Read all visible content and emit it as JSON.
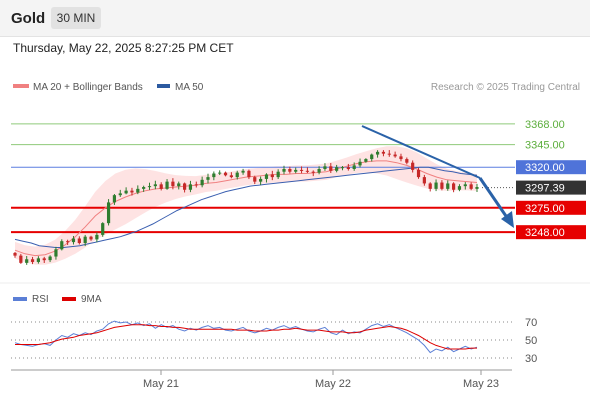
{
  "header": {
    "symbol": "Gold",
    "timeframe": "30 MIN",
    "datetime": "Thursday, May 22, 2025 8:27:25 PM CET"
  },
  "legend": {
    "items": [
      {
        "label": "MA 20 + Bollinger Bands",
        "color": "#f08080"
      },
      {
        "label": "MA 50",
        "color": "#2c5aa0"
      }
    ],
    "credit": "Research © 2025 Trading Central"
  },
  "rsi_legend": {
    "items": [
      {
        "label": "RSI",
        "color": "#5b7fd6"
      },
      {
        "label": "9MA",
        "color": "#dd0000"
      }
    ]
  },
  "colors": {
    "bullish_candle": "#2f7d2f",
    "bearish_candle": "#c62828",
    "resistance": "#8fca7a",
    "pivot": "#5b7fe0",
    "support": "#e60000",
    "last_price": "#333333",
    "arrow": "#2a62a8",
    "band_fill": "#fdd9d9"
  },
  "chart_data": [
    {
      "type": "candlestick",
      "title": "",
      "x_ticks": [
        "May 21",
        "May 22",
        "May 23"
      ],
      "ylim": [
        3195,
        3400
      ],
      "price_levels": [
        {
          "value": 3368.0,
          "label": "3368.00",
          "kind": "resistance"
        },
        {
          "value": 3345.0,
          "label": "3345.00",
          "kind": "resistance"
        },
        {
          "value": 3320.0,
          "label": "3320.00",
          "kind": "pivot"
        },
        {
          "value": 3297.39,
          "label": "3297.39",
          "kind": "last"
        },
        {
          "value": 3275.0,
          "label": "3275.00",
          "kind": "support"
        },
        {
          "value": 3248.0,
          "label": "3248.00",
          "kind": "support"
        }
      ],
      "ohlc_close_path": [
        3222,
        3214,
        3218,
        3215,
        3219,
        3217,
        3221,
        3229,
        3238,
        3237,
        3241,
        3236,
        3243,
        3240,
        3245,
        3258,
        3281,
        3289,
        3291,
        3294,
        3292,
        3296,
        3298,
        3299,
        3301,
        3296,
        3304,
        3299,
        3302,
        3295,
        3301,
        3300,
        3306,
        3309,
        3313,
        3314,
        3311,
        3309,
        3314,
        3316,
        3309,
        3304,
        3307,
        3312,
        3309,
        3315,
        3318,
        3315,
        3317,
        3316,
        3315,
        3314,
        3318,
        3321,
        3316,
        3320,
        3320,
        3318,
        3322,
        3326,
        3329,
        3334,
        3337,
        3335,
        3334,
        3332,
        3329,
        3325,
        3317,
        3309,
        3302,
        3296,
        3303,
        3296,
        3302,
        3295,
        3299,
        3301,
        3296,
        3298
      ],
      "ma50_path": [
        3240,
        3238,
        3236,
        3233,
        3232,
        3231,
        3231,
        3232,
        3233,
        3235,
        3237,
        3239,
        3241,
        3243,
        3246,
        3249,
        3253,
        3257,
        3262,
        3267,
        3272,
        3276,
        3280,
        3284,
        3287,
        3290,
        3293,
        3295,
        3297,
        3299,
        3300,
        3301,
        3302,
        3303,
        3304,
        3305,
        3306,
        3307,
        3308,
        3309,
        3310,
        3311,
        3312,
        3313,
        3314,
        3315,
        3316,
        3317,
        3318,
        3319,
        3320,
        3320,
        3318,
        3316,
        3315,
        3313,
        3312,
        3311
      ],
      "ma20_path": [
        3228,
        3224,
        3222,
        3223,
        3227,
        3234,
        3243,
        3254,
        3266,
        3275,
        3282,
        3287,
        3291,
        3294,
        3296,
        3297,
        3298,
        3299,
        3300,
        3302,
        3303,
        3305,
        3307,
        3309,
        3310,
        3311,
        3312,
        3312,
        3313,
        3313,
        3314,
        3315,
        3318,
        3321,
        3324,
        3326,
        3327,
        3327,
        3325,
        3322,
        3318,
        3313,
        3309,
        3306,
        3305,
        3304,
        3303
      ]
    },
    {
      "type": "line",
      "title": "",
      "y_ticks": [
        70,
        50,
        30
      ],
      "ylim": [
        20,
        80
      ],
      "series": [
        {
          "name": "RSI",
          "values": [
            47,
            45,
            44,
            43,
            45,
            46,
            44,
            50,
            55,
            53,
            57,
            55,
            58,
            56,
            60,
            62,
            68,
            71,
            69,
            70,
            67,
            69,
            66,
            68,
            63,
            67,
            64,
            66,
            62,
            60,
            63,
            61,
            64,
            66,
            63,
            64,
            61,
            60,
            62,
            64,
            60,
            58,
            60,
            63,
            61,
            64,
            66,
            63,
            65,
            62,
            60,
            59,
            62,
            64,
            58,
            56,
            61,
            57,
            59,
            58,
            62,
            66,
            68,
            65,
            67,
            64,
            61,
            58,
            54,
            50,
            44,
            36,
            40,
            38,
            42,
            37,
            40,
            43,
            40,
            42
          ]
        },
        {
          "name": "9MA",
          "values": [
            45,
            45,
            45,
            45,
            45,
            46,
            47,
            49,
            51,
            52,
            53,
            55,
            56,
            57,
            58,
            60,
            62,
            64,
            65,
            66,
            67,
            67,
            67,
            66,
            66,
            65,
            65,
            64,
            64,
            63,
            62,
            62,
            62,
            62,
            62,
            62,
            62,
            62,
            61,
            61,
            61,
            60,
            60,
            60,
            61,
            61,
            62,
            62,
            63,
            62,
            61,
            61,
            61,
            60,
            59,
            59,
            59,
            58,
            58,
            59,
            61,
            62,
            63,
            64,
            65,
            64,
            63,
            61,
            58,
            55,
            51,
            47,
            44,
            42,
            40,
            40,
            40,
            40,
            41,
            41
          ]
        }
      ]
    }
  ]
}
